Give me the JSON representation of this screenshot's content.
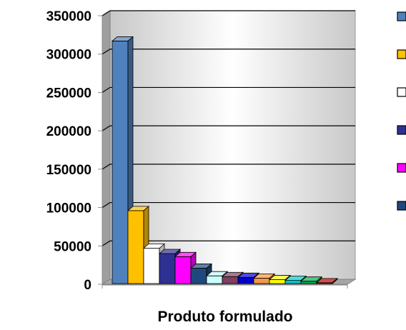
{
  "chart_data": {
    "type": "bar",
    "title": "",
    "xlabel": "Produto formulado",
    "ylabel": "",
    "ylim": [
      0,
      350000
    ],
    "yticks": [
      0,
      50000,
      100000,
      150000,
      200000,
      250000,
      300000,
      350000
    ],
    "grid": true,
    "legend": "right",
    "series": [
      {
        "values": [
          317000
        ],
        "color": "#4F81BD"
      },
      {
        "values": [
          96000
        ],
        "color": "#FFC000"
      },
      {
        "values": [
          47000
        ],
        "color": "#FFFFFF"
      },
      {
        "values": [
          40000
        ],
        "color": "#2E3192"
      },
      {
        "values": [
          36000
        ],
        "color": "#FF00FF"
      },
      {
        "values": [
          21000
        ],
        "color": "#1F497D"
      },
      {
        "values": [
          11000
        ],
        "color": "#CCFFFF"
      },
      {
        "values": [
          10000
        ],
        "color": "#7F3F5F"
      },
      {
        "values": [
          9000
        ],
        "color": "#0000CC"
      },
      {
        "values": [
          8000
        ],
        "color": "#F79646"
      },
      {
        "values": [
          6000
        ],
        "color": "#FFFF00"
      },
      {
        "values": [
          5000
        ],
        "color": "#00CCCC"
      },
      {
        "values": [
          4000
        ],
        "color": "#00B050"
      },
      {
        "values": [
          2000
        ],
        "color": "#C00000"
      }
    ],
    "legend_entries": [
      {
        "color": "#4F81BD"
      },
      {
        "color": "#FFC000"
      },
      {
        "color": "#FFFFFF"
      },
      {
        "color": "#2E3192"
      },
      {
        "color": "#FF00FF"
      },
      {
        "color": "#1F497D"
      }
    ]
  }
}
